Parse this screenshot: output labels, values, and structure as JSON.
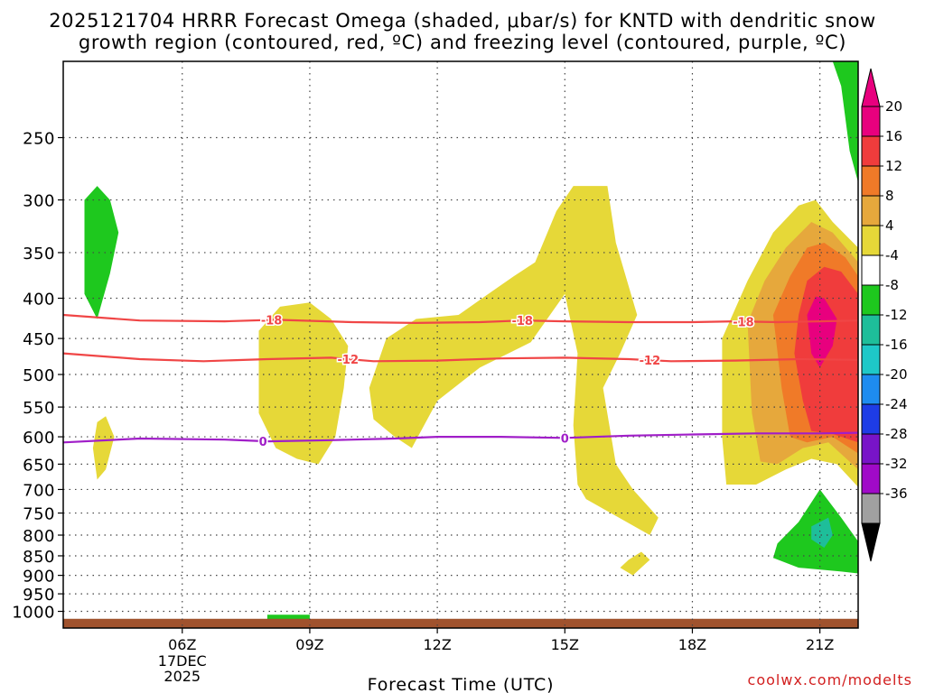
{
  "title_line1": "2025121704 HRRR Forecast Omega (shaded, μbar/s) for KNTD with dendritic snow",
  "title_line2": "growth region (contoured, red, ºC) and freezing level (contoured, purple, ºC)",
  "credit": "coolwx.com/modelts",
  "chart_data": {
    "type": "contour",
    "xlabel": "Forecast Time (UTC)",
    "ylabel": "",
    "x_range_hours_utc": [
      3.2,
      21.9
    ],
    "y_range_mb": [
      1050,
      200
    ],
    "y_scale": "log",
    "grid": true,
    "x_ticks": [
      {
        "value": 6,
        "label": "06Z",
        "sub": [
          "17DEC",
          "2025"
        ]
      },
      {
        "value": 9,
        "label": "09Z"
      },
      {
        "value": 12,
        "label": "12Z"
      },
      {
        "value": 15,
        "label": "15Z"
      },
      {
        "value": 18,
        "label": "18Z"
      },
      {
        "value": 21,
        "label": "21Z"
      }
    ],
    "y_ticks": [
      250,
      300,
      350,
      400,
      450,
      500,
      550,
      600,
      650,
      700,
      750,
      800,
      850,
      900,
      950,
      1000
    ],
    "colorbar": {
      "labels": [
        "20",
        "16",
        "12",
        "8",
        "4",
        "-4",
        "-8",
        "-12",
        "-16",
        "-20",
        "-24",
        "-28",
        "-32",
        "-36"
      ],
      "colors": [
        "#e8007e",
        "#f03c3c",
        "#f07a28",
        "#e6a83c",
        "#e6d838",
        "#ffffff",
        "#1ec81e",
        "#1ebe9a",
        "#1ec8c8",
        "#1e8cf0",
        "#1e3ce6",
        "#7814c8",
        "#a00ac8",
        "#a0a0a0"
      ],
      "over_color": "#e8007e",
      "under_color": "#000000"
    },
    "contours": [
      {
        "kind": "dendritic",
        "value": -18,
        "label": "-18",
        "color": "#f04646",
        "points": [
          [
            3.2,
            420
          ],
          [
            5,
            427
          ],
          [
            7,
            428
          ],
          [
            8.2,
            426
          ],
          [
            10,
            429
          ],
          [
            11.5,
            430
          ],
          [
            13,
            429
          ],
          [
            14,
            427
          ],
          [
            15,
            428
          ],
          [
            16.5,
            429
          ],
          [
            18,
            429
          ],
          [
            19,
            428
          ],
          [
            20,
            429
          ],
          [
            21,
            428
          ],
          [
            21.9,
            427
          ]
        ],
        "label_x": [
          8.1,
          14.0,
          19.2
        ]
      },
      {
        "kind": "dendritic",
        "value": -12,
        "label": "-12",
        "color": "#f04646",
        "points": [
          [
            3.2,
            470
          ],
          [
            5,
            478
          ],
          [
            6.5,
            481
          ],
          [
            8,
            478
          ],
          [
            9.5,
            476
          ],
          [
            10.5,
            481
          ],
          [
            12,
            480
          ],
          [
            13.5,
            477
          ],
          [
            15,
            476
          ],
          [
            16.5,
            478
          ],
          [
            17.5,
            481
          ],
          [
            19,
            480
          ],
          [
            20.5,
            478
          ],
          [
            21.9,
            479
          ]
        ],
        "label_x": [
          9.9,
          17.0
        ]
      },
      {
        "kind": "freezing",
        "value": 0,
        "label": "0",
        "color": "#a01ec8",
        "points": [
          [
            3.2,
            610
          ],
          [
            5,
            603
          ],
          [
            7,
            605
          ],
          [
            8,
            608
          ],
          [
            9.5,
            606
          ],
          [
            11,
            603
          ],
          [
            12,
            600
          ],
          [
            13.5,
            600
          ],
          [
            15,
            602
          ],
          [
            16.5,
            598
          ],
          [
            18,
            596
          ],
          [
            19.5,
            594
          ],
          [
            21,
            594
          ],
          [
            21.9,
            593
          ]
        ],
        "label_x": [
          7.9,
          15.0
        ]
      }
    ]
  }
}
